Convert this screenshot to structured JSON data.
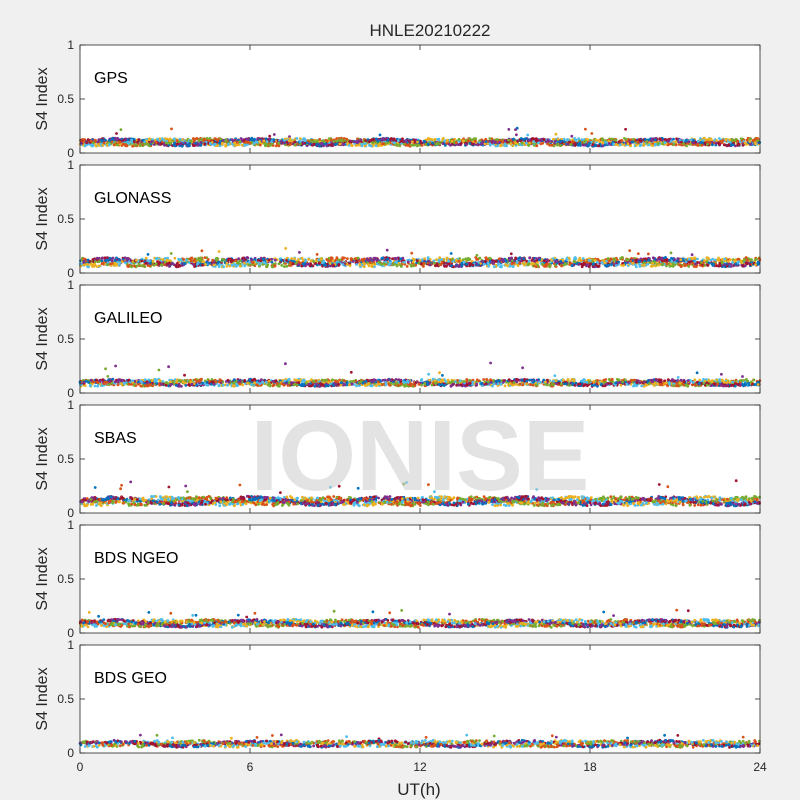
{
  "figure": {
    "title": "HNLE20210222",
    "xlabel": "UT(h)",
    "ylabel": "S4 Index",
    "watermark": "IONISE"
  },
  "colors": {
    "background": "#f0f0f0",
    "axes_bg": "#ffffff",
    "series_palette": [
      "#0072BD",
      "#D95319",
      "#EDB120",
      "#7E2F8E",
      "#77AC30",
      "#4DBEEE",
      "#A2142F"
    ]
  },
  "chart_data": [
    {
      "type": "scatter",
      "label": "GPS",
      "xlim": [
        0,
        24
      ],
      "ylim": [
        0,
        1
      ],
      "x_ticks": [
        0,
        6,
        12,
        18,
        24
      ],
      "y_ticks": [
        0,
        0.5,
        1
      ],
      "x_tick_labels": [],
      "y_tick_labels": [
        "0",
        "0.5",
        "1"
      ],
      "grid": false,
      "point_count": 2800,
      "typical_range": [
        0.05,
        0.15
      ],
      "peak": 0.23
    },
    {
      "type": "scatter",
      "label": "GLONASS",
      "xlim": [
        0,
        24
      ],
      "ylim": [
        0,
        1
      ],
      "x_ticks": [
        0,
        6,
        12,
        18,
        24
      ],
      "y_ticks": [
        0,
        0.5,
        1
      ],
      "x_tick_labels": [],
      "y_tick_labels": [
        "0",
        "0.5",
        "1"
      ],
      "grid": false,
      "point_count": 2200,
      "typical_range": [
        0.04,
        0.16
      ],
      "peak": 0.23
    },
    {
      "type": "scatter",
      "label": "GALILEO",
      "xlim": [
        0,
        24
      ],
      "ylim": [
        0,
        1
      ],
      "x_ticks": [
        0,
        6,
        12,
        18,
        24
      ],
      "y_ticks": [
        0,
        0.5,
        1
      ],
      "x_tick_labels": [],
      "y_tick_labels": [
        "0",
        "0.5",
        "1"
      ],
      "grid": false,
      "point_count": 2200,
      "typical_range": [
        0.05,
        0.14
      ],
      "peak": 0.28
    },
    {
      "type": "scatter",
      "label": "SBAS",
      "xlim": [
        0,
        24
      ],
      "ylim": [
        0,
        1
      ],
      "x_ticks": [
        0,
        6,
        12,
        18,
        24
      ],
      "y_ticks": [
        0,
        0.5,
        1
      ],
      "x_tick_labels": [],
      "y_tick_labels": [
        "0",
        "0.5",
        "1"
      ],
      "grid": false,
      "point_count": 2400,
      "typical_range": [
        0.05,
        0.17
      ],
      "peak": 0.3
    },
    {
      "type": "scatter",
      "label": "BDS NGEO",
      "xlim": [
        0,
        24
      ],
      "ylim": [
        0,
        1
      ],
      "x_ticks": [
        0,
        6,
        12,
        18,
        24
      ],
      "y_ticks": [
        0,
        0.5,
        1
      ],
      "x_tick_labels": [],
      "y_tick_labels": [
        "0",
        "0.5",
        "1"
      ],
      "grid": false,
      "point_count": 2400,
      "typical_range": [
        0.04,
        0.14
      ],
      "peak": 0.22
    },
    {
      "type": "scatter",
      "label": "BDS GEO",
      "xlim": [
        0,
        24
      ],
      "ylim": [
        0,
        1
      ],
      "x_ticks": [
        0,
        6,
        12,
        18,
        24
      ],
      "y_ticks": [
        0,
        0.5,
        1
      ],
      "x_tick_labels": [
        "0",
        "6",
        "12",
        "18",
        "24"
      ],
      "y_tick_labels": [
        "0",
        "0.5",
        "1"
      ],
      "grid": false,
      "point_count": 1800,
      "typical_range": [
        0.04,
        0.13
      ],
      "peak": 0.17
    }
  ]
}
